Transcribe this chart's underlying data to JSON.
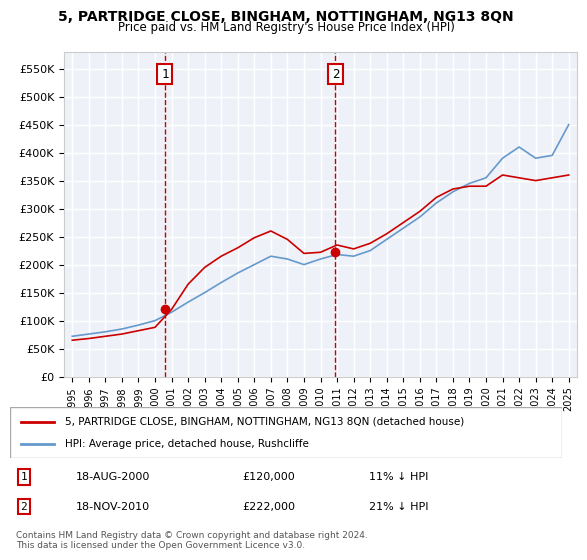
{
  "title": "5, PARTRIDGE CLOSE, BINGHAM, NOTTINGHAM, NG13 8QN",
  "subtitle": "Price paid vs. HM Land Registry's House Price Index (HPI)",
  "ylabel_ticks": [
    "£0",
    "£50K",
    "£100K",
    "£150K",
    "£200K",
    "£250K",
    "£300K",
    "£350K",
    "£400K",
    "£450K",
    "£500K",
    "£550K"
  ],
  "ytick_vals": [
    0,
    50000,
    100000,
    150000,
    200000,
    250000,
    300000,
    350000,
    400000,
    450000,
    500000,
    550000
  ],
  "ylim": [
    0,
    580000
  ],
  "legend_line1": "5, PARTRIDGE CLOSE, BINGHAM, NOTTINGHAM, NG13 8QN (detached house)",
  "legend_line2": "HPI: Average price, detached house, Rushcliffe",
  "annotation1": {
    "label": "1",
    "date": "18-AUG-2000",
    "price": "£120,000",
    "pct": "11% ↓ HPI"
  },
  "annotation2": {
    "label": "2",
    "date": "18-NOV-2010",
    "price": "£222,000",
    "pct": "21% ↓ HPI"
  },
  "footnote": "Contains HM Land Registry data © Crown copyright and database right 2024.\nThis data is licensed under the Open Government Licence v3.0.",
  "background_color": "#eef2f8",
  "line_color_red": "#cc0000",
  "line_color_blue": "#6699cc",
  "marker_color_red": "#cc0000",
  "vline_color": "#cc0000",
  "grid_color": "#ffffff",
  "years_x": [
    1995,
    1996,
    1997,
    1998,
    1999,
    2000,
    2001,
    2002,
    2003,
    2004,
    2005,
    2006,
    2007,
    2008,
    2009,
    2010,
    2011,
    2012,
    2013,
    2014,
    2015,
    2016,
    2017,
    2018,
    2019,
    2020,
    2021,
    2022,
    2023,
    2024,
    2025
  ],
  "hpi_values": [
    72000,
    76000,
    80000,
    85000,
    92000,
    100000,
    115000,
    133000,
    150000,
    168000,
    185000,
    200000,
    215000,
    210000,
    200000,
    210000,
    218000,
    215000,
    225000,
    245000,
    265000,
    285000,
    310000,
    330000,
    345000,
    355000,
    390000,
    410000,
    390000,
    395000,
    450000
  ],
  "price_values": [
    65000,
    68000,
    72000,
    76000,
    82000,
    88000,
    120000,
    165000,
    195000,
    215000,
    230000,
    248000,
    260000,
    245000,
    220000,
    222000,
    235000,
    228000,
    238000,
    255000,
    275000,
    295000,
    320000,
    335000,
    340000,
    340000,
    360000,
    355000,
    350000,
    355000,
    360000
  ],
  "sale1_x": 2000.6,
  "sale2_x": 2010.9,
  "sale1_y": 120000,
  "sale2_y": 222000,
  "xlim_left": 1994.5,
  "xlim_right": 2025.5
}
